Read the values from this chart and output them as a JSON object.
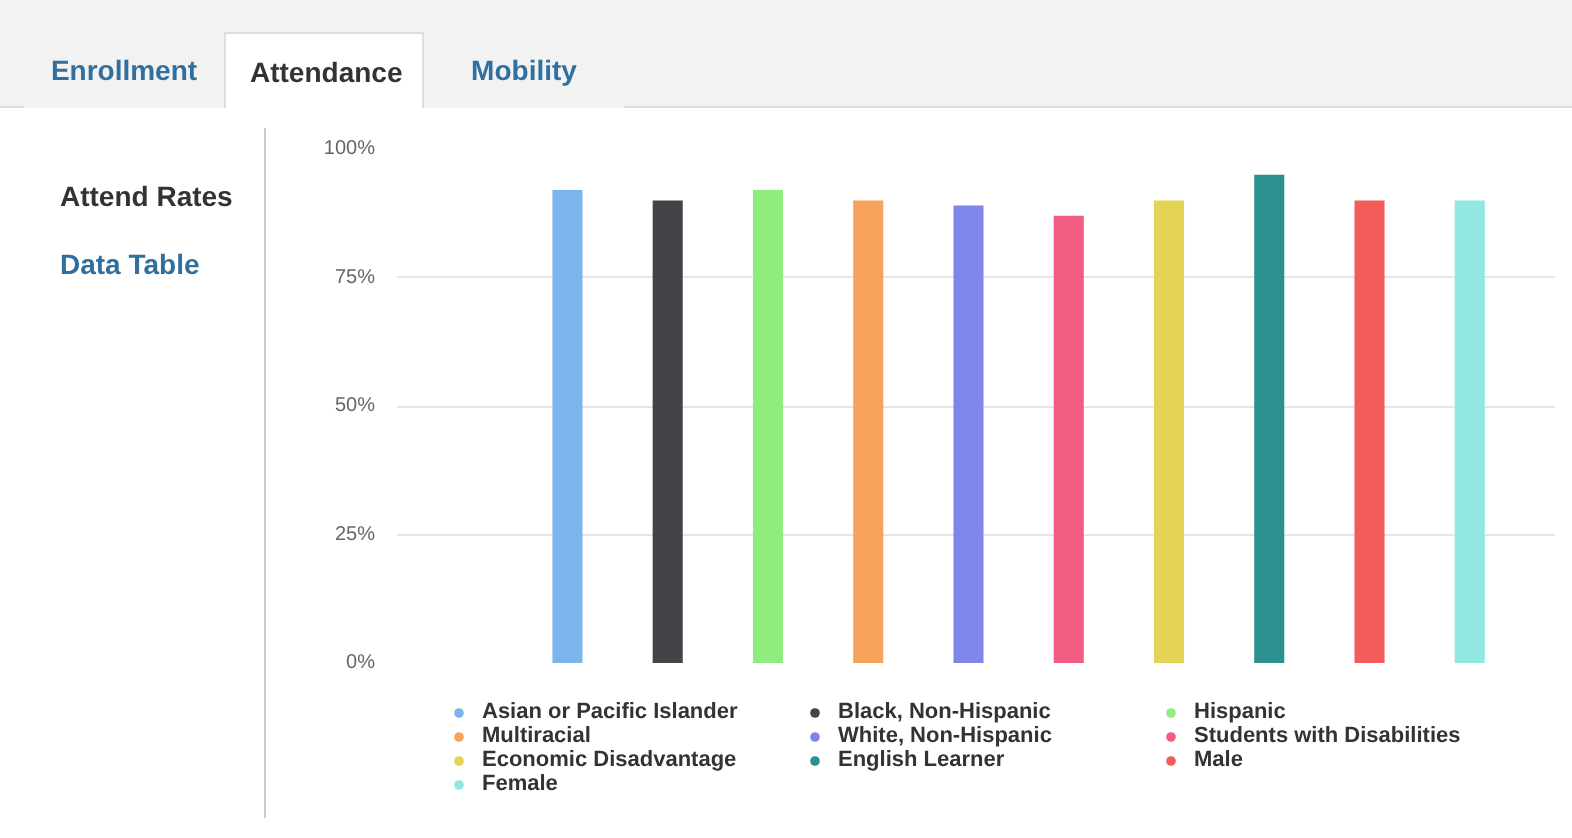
{
  "chart_data": {
    "type": "bar",
    "categories": [
      null
    ],
    "series": [
      {
        "name": "Asian or Pacific Islander",
        "color": "#7cb5ec",
        "values": [
          92
        ]
      },
      {
        "name": "Black, Non-Hispanic",
        "color": "#434348",
        "values": [
          90
        ]
      },
      {
        "name": "Hispanic",
        "color": "#90ed7d",
        "values": [
          92
        ]
      },
      {
        "name": "Multiracial",
        "color": "#f7a35c",
        "values": [
          90
        ]
      },
      {
        "name": "White, Non-Hispanic",
        "color": "#8085e9",
        "values": [
          89
        ]
      },
      {
        "name": "Students with Disabilities",
        "color": "#f15c80",
        "values": [
          87
        ]
      },
      {
        "name": "Economic Disadvantage",
        "color": "#e4d354",
        "values": [
          90
        ]
      },
      {
        "name": "English Learner",
        "color": "#2b908f",
        "values": [
          95
        ]
      },
      {
        "name": "Male",
        "color": "#f45b5b",
        "values": [
          90
        ]
      },
      {
        "name": "Female",
        "color": "#91e8e1",
        "values": [
          90
        ]
      }
    ],
    "ylim": [
      0,
      100
    ],
    "yticks": [
      {
        "value": 0,
        "label": "0%"
      },
      {
        "value": 25,
        "label": "25%"
      },
      {
        "value": 50,
        "label": "50%"
      },
      {
        "value": 75,
        "label": "75%"
      },
      {
        "value": 100,
        "label": "100%"
      }
    ],
    "grid": "y",
    "legend": "bottom",
    "tick_labels": "y",
    "annotations": [
      "Enrollment",
      "Attendance",
      "Mobility",
      "Attend Rates",
      "Data Table"
    ]
  }
}
